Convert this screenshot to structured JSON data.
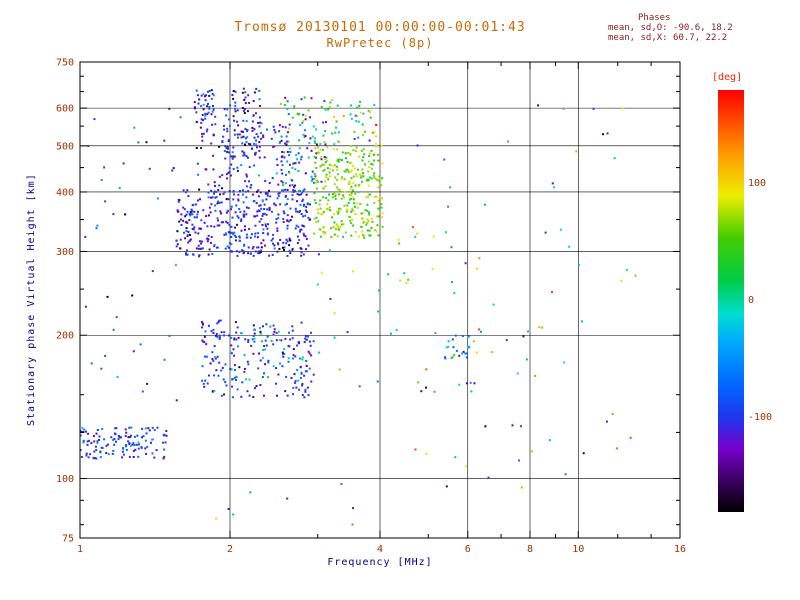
{
  "header": {
    "title": "Tromsø 20130101 00:00:00-00:01:43",
    "subtitle": "RwPretec (8p)",
    "phases": {
      "heading": "Phases",
      "line_o": "mean, sd,O: -90.6, 18.2",
      "line_x": "mean, sd,X:  60.7, 22.2"
    }
  },
  "colors": {
    "background": "#ffffff",
    "title": "#c96a00",
    "phases_text": "#8b1a1a",
    "tick_label": "#a03000",
    "axis_title": "#00008b",
    "frame": "#000000",
    "deg_label": "#ff2200"
  },
  "chart_data": {
    "type": "scatter",
    "title": "Tromsø 20130101 00:00:00-00:01:43",
    "subtitle": "RwPretec (8p)",
    "xlabel": "Frequency [MHz]",
    "ylabel": "Stationary phase Virtual Height [km]",
    "x_scale": "log",
    "y_scale": "log",
    "xlim": [
      1,
      16
    ],
    "ylim": [
      75,
      750
    ],
    "x_ticks": [
      {
        "v": 1,
        "label": "1"
      },
      {
        "v": 2,
        "label": "2"
      },
      {
        "v": 4,
        "label": "4"
      },
      {
        "v": 6,
        "label": "6"
      },
      {
        "v": 8,
        "label": "8"
      },
      {
        "v": 10,
        "label": "10"
      },
      {
        "v": 16,
        "label": "16"
      }
    ],
    "x_minor": [
      3,
      5,
      7,
      9,
      12,
      14
    ],
    "y_ticks": [
      {
        "v": 750,
        "label": "750"
      },
      {
        "v": 600,
        "label": "600"
      },
      {
        "v": 500,
        "label": "500"
      },
      {
        "v": 400,
        "label": "400"
      },
      {
        "v": 300,
        "label": "300"
      },
      {
        "v": 200,
        "label": "200"
      },
      {
        "v": 100,
        "label": "100"
      },
      {
        "v": 75,
        "label": "75"
      }
    ],
    "y_minor": [
      700,
      650,
      550,
      450,
      350,
      250,
      150,
      125,
      90,
      80
    ],
    "x_grid": [
      2,
      4,
      6,
      8,
      10
    ],
    "y_grid": [
      600,
      500,
      400,
      300,
      200,
      100
    ],
    "stats": {
      "mean_sd_O": [
        -90.6,
        18.2
      ],
      "mean_sd_X": [
        60.7,
        22.2
      ]
    },
    "colorbar": {
      "label": "[deg]",
      "min": -180,
      "max": 180,
      "ticks": [
        {
          "v": 100,
          "label": "100"
        },
        {
          "v": 0,
          "label": "0"
        },
        {
          "v": -100,
          "label": "-100"
        }
      ],
      "stops": [
        {
          "t": 0.0,
          "c": "#000000"
        },
        {
          "t": 0.08,
          "c": "#40006a"
        },
        {
          "t": 0.15,
          "c": "#7700cc"
        },
        {
          "t": 0.22,
          "c": "#2233ee"
        },
        {
          "t": 0.3,
          "c": "#0066ff"
        },
        {
          "t": 0.4,
          "c": "#00a8ff"
        },
        {
          "t": 0.47,
          "c": "#00ddd0"
        },
        {
          "t": 0.55,
          "c": "#00cc44"
        },
        {
          "t": 0.65,
          "c": "#44cc00"
        },
        {
          "t": 0.75,
          "c": "#eeee00"
        },
        {
          "t": 0.85,
          "c": "#ff9900"
        },
        {
          "t": 1.0,
          "c": "#ff0000"
        }
      ]
    },
    "clusters": [
      {
        "name": "f-region-o-core",
        "f": [
          1.55,
          2.9
        ],
        "h": [
          293,
          405
        ],
        "n": 420,
        "phase": [
          -105,
          25
        ]
      },
      {
        "name": "f-region-o-upper",
        "f": [
          1.7,
          2.65
        ],
        "h": [
          400,
          560
        ],
        "n": 120,
        "phase": [
          -108,
          30
        ]
      },
      {
        "name": "column-2.1mhz",
        "f": [
          1.95,
          2.3
        ],
        "h": [
          470,
          660
        ],
        "n": 90,
        "phase": [
          -110,
          35
        ]
      },
      {
        "name": "column-1.8mhz",
        "f": [
          1.7,
          1.87
        ],
        "h": [
          555,
          655
        ],
        "n": 45,
        "phase": [
          -100,
          40
        ]
      },
      {
        "name": "mid-mixed-2.8mhz",
        "f": [
          2.5,
          3.15
        ],
        "h": [
          400,
          640
        ],
        "n": 110,
        "phase_uniform": [
          -150,
          90
        ]
      },
      {
        "name": "x-mode-core",
        "f": [
          2.95,
          4.05
        ],
        "h": [
          320,
          500
        ],
        "n": 300,
        "phase": [
          62,
          22
        ]
      },
      {
        "name": "x-mode-upper",
        "f": [
          3.1,
          3.95
        ],
        "h": [
          500,
          625
        ],
        "n": 45,
        "phase": [
          40,
          55
        ]
      },
      {
        "name": "second-hop",
        "f": [
          1.75,
          2.95
        ],
        "h": [
          148,
          215
        ],
        "n": 200,
        "phase": [
          -105,
          30
        ]
      },
      {
        "name": "second-hop-cyan",
        "f": [
          2.0,
          2.85
        ],
        "h": [
          160,
          210
        ],
        "n": 35,
        "phase": [
          -40,
          25
        ]
      },
      {
        "name": "es-band",
        "f": [
          1.0,
          1.5
        ],
        "h": [
          110,
          128
        ],
        "n": 130,
        "phase": [
          -95,
          28
        ]
      },
      {
        "name": "left-sparse",
        "f": [
          1.0,
          1.6
        ],
        "h": [
          130,
          620
        ],
        "n": 40,
        "phase": [
          -90,
          50
        ]
      },
      {
        "name": "mid-scatter",
        "f": [
          3.0,
          6.5
        ],
        "h": [
          150,
          330
        ],
        "n": 45,
        "phase_uniform": [
          -150,
          150
        ]
      },
      {
        "name": "six-mhz-clump",
        "f": [
          5.4,
          6.1
        ],
        "h": [
          178,
          200
        ],
        "n": 22,
        "phase": [
          -50,
          40
        ]
      },
      {
        "name": "right-scatter",
        "f": [
          4.2,
          13.5
        ],
        "h": [
          95,
          620
        ],
        "n": 65,
        "phase_uniform": [
          -170,
          170
        ]
      },
      {
        "name": "bottom-sparse",
        "f": [
          1.8,
          3.6
        ],
        "h": [
          80,
          100
        ],
        "n": 8,
        "phase_uniform": [
          -170,
          170
        ]
      }
    ]
  }
}
